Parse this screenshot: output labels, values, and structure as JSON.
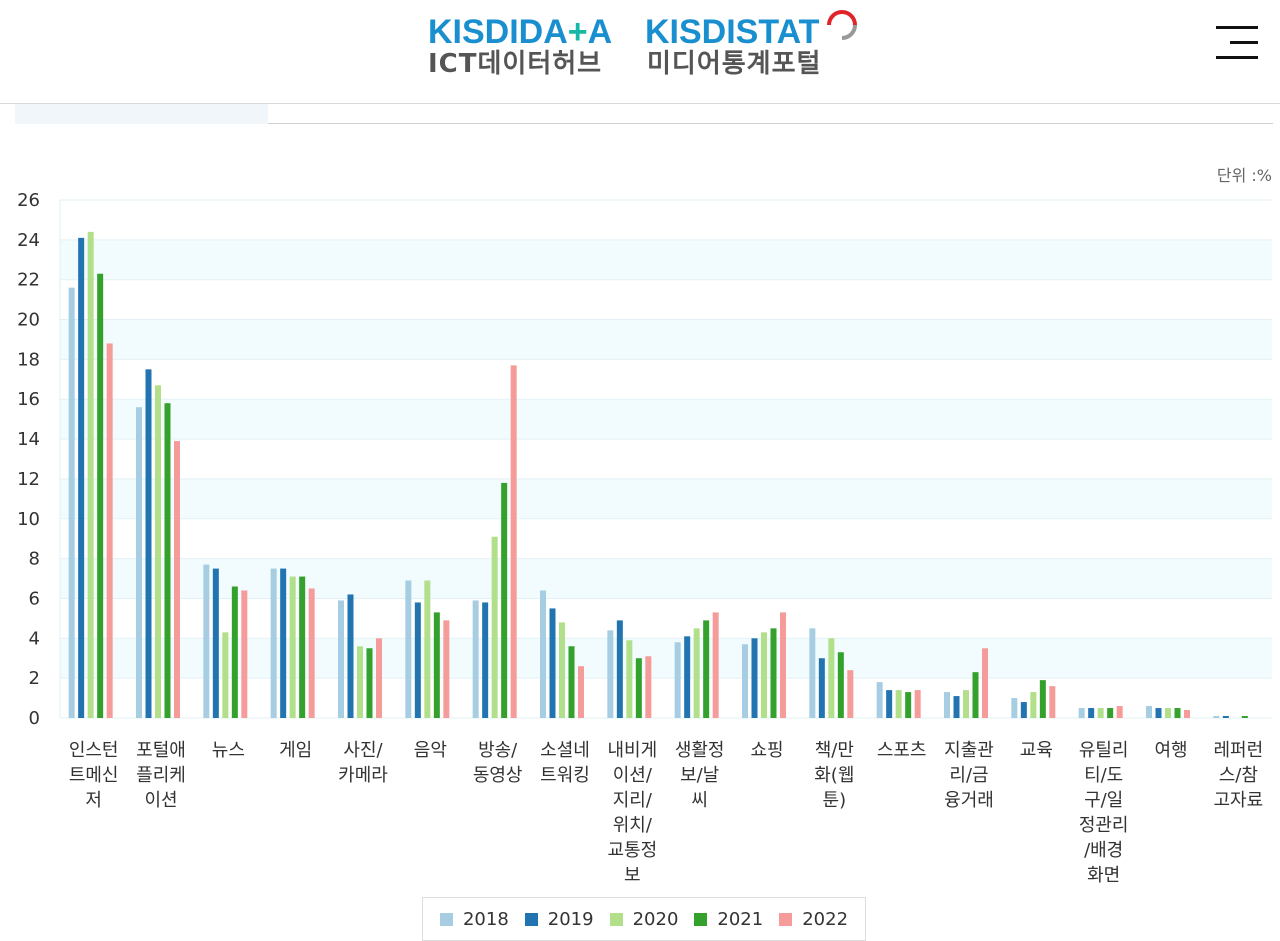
{
  "header": {
    "logo1_main_a": "KISDIDA",
    "logo1_main_b": "+",
    "logo1_main_c": "A",
    "logo1_sub": "ICT데이터허브",
    "logo2_main": "KISDISTAT",
    "logo2_sub": "미디어통계포털"
  },
  "unit_label": "단위 :%",
  "colors": {
    "2018": "#a6cde2",
    "2019": "#2274b0",
    "2020": "#b2df8a",
    "2021": "#33a12c",
    "2022": "#f59b9a"
  },
  "chart_data": {
    "type": "bar",
    "ylim": [
      0,
      26
    ],
    "yticks": [
      0,
      2,
      4,
      6,
      8,
      10,
      12,
      14,
      16,
      18,
      20,
      22,
      24,
      26
    ],
    "categories": [
      [
        "인스턴",
        "트메신",
        "저"
      ],
      [
        "포털애",
        "플리케",
        "이션"
      ],
      [
        "뉴스"
      ],
      [
        "게임"
      ],
      [
        "사진/",
        "카메라"
      ],
      [
        "음악"
      ],
      [
        "방송/",
        "동영상"
      ],
      [
        "소셜네",
        "트워킹"
      ],
      [
        "내비게",
        "이션/",
        "지리/",
        "위치/",
        "교통정",
        "보"
      ],
      [
        "생활정",
        "보/날",
        "씨"
      ],
      [
        "쇼핑"
      ],
      [
        "책/만",
        "화(웹",
        "툰)"
      ],
      [
        "스포츠"
      ],
      [
        "지출관",
        "리/금",
        "융거래"
      ],
      [
        "교육"
      ],
      [
        "유틸리",
        "티/도",
        "구/일",
        "정관리",
        "/배경",
        "화면"
      ],
      [
        "여행"
      ],
      [
        "레퍼런",
        "스/참",
        "고자료"
      ]
    ],
    "series": [
      {
        "name": "2018",
        "values": [
          21.6,
          15.6,
          7.7,
          7.5,
          5.9,
          6.9,
          5.9,
          6.4,
          4.4,
          3.8,
          3.7,
          4.5,
          1.8,
          1.3,
          1.0,
          0.5,
          0.6,
          0.1
        ]
      },
      {
        "name": "2019",
        "values": [
          24.1,
          17.5,
          7.5,
          7.5,
          6.2,
          5.8,
          5.8,
          5.5,
          4.9,
          4.1,
          4.0,
          3.0,
          1.4,
          1.1,
          0.8,
          0.5,
          0.5,
          0.1
        ]
      },
      {
        "name": "2020",
        "values": [
          24.4,
          16.7,
          4.3,
          7.1,
          3.6,
          6.9,
          9.1,
          4.8,
          3.9,
          4.5,
          4.3,
          4.0,
          1.4,
          1.4,
          1.3,
          0.5,
          0.5,
          0.0
        ]
      },
      {
        "name": "2021",
        "values": [
          22.3,
          15.8,
          6.6,
          7.1,
          3.5,
          5.3,
          11.8,
          3.6,
          3.0,
          4.9,
          4.5,
          3.3,
          1.3,
          2.3,
          1.9,
          0.5,
          0.5,
          0.1
        ]
      },
      {
        "name": "2022",
        "values": [
          18.8,
          13.9,
          6.4,
          6.5,
          4.0,
          4.9,
          17.7,
          2.6,
          3.1,
          5.3,
          5.3,
          2.4,
          1.4,
          3.5,
          1.6,
          0.6,
          0.4,
          0.0
        ]
      }
    ],
    "legend": [
      "2018",
      "2019",
      "2020",
      "2021",
      "2022"
    ],
    "legend_position": "bottom"
  }
}
